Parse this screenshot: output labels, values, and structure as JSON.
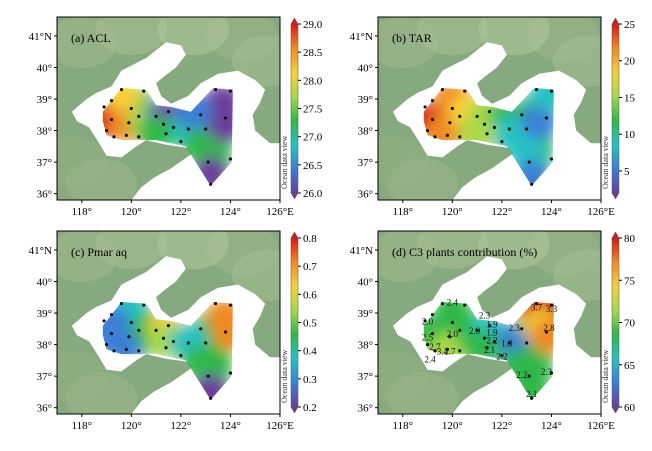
{
  "panels": [
    {
      "id": "a",
      "title": "(a) ACL",
      "colorbar": {
        "ticks": [
          "29.0",
          "28.5",
          "28.0",
          "27.5",
          "27.0",
          "26.5",
          "26.0"
        ],
        "range": [
          26.0,
          29.0
        ],
        "colors": [
          "#6a3d9a",
          "#3a7fd6",
          "#27c2c2",
          "#2eb84a",
          "#a7d84a",
          "#f6d13a",
          "#f08a24",
          "#d7191c"
        ]
      },
      "watermark": "Ocean data view",
      "labels": []
    },
    {
      "id": "b",
      "title": "(b) TAR",
      "colorbar": {
        "ticks": [
          "25",
          "20",
          "15",
          "10",
          "5"
        ],
        "range": [
          2,
          25
        ],
        "colors": [
          "#6a3d9a",
          "#3a7fd6",
          "#27c2c2",
          "#2eb84a",
          "#a7d84a",
          "#f6d13a",
          "#f08a24",
          "#d7191c"
        ]
      },
      "watermark": "Ocean data view",
      "labels": []
    },
    {
      "id": "c",
      "title": "(c) Pmar aq",
      "colorbar": {
        "ticks": [
          "0.8",
          "0.7",
          "0.6",
          "0.5",
          "0.4",
          "0.3",
          "0.2"
        ],
        "range": [
          0.2,
          0.8
        ],
        "colors": [
          "#6a3d9a",
          "#3a7fd6",
          "#27c2c2",
          "#2eb84a",
          "#a7d84a",
          "#f6d13a",
          "#f08a24",
          "#d7191c"
        ]
      },
      "watermark": "Ocean data view",
      "labels": []
    },
    {
      "id": "d",
      "title": "(d) C3 plants contribution (%)",
      "colorbar": {
        "ticks": [
          "80",
          "75",
          "70",
          "65",
          "60"
        ],
        "range": [
          60,
          80
        ],
        "colors": [
          "#6a3d9a",
          "#3a7fd6",
          "#27c2c2",
          "#2eb84a",
          "#a7d84a",
          "#f6d13a",
          "#f08a24",
          "#d7191c"
        ]
      },
      "watermark": "Ocean data view",
      "labels": [
        {
          "text": "2.4",
          "lon": 120.0,
          "lat": 39.3
        },
        {
          "text": "2.0",
          "lon": 119.0,
          "lat": 38.7
        },
        {
          "text": "2.3",
          "lon": 121.3,
          "lat": 38.9
        },
        {
          "text": "2.5",
          "lon": 119.0,
          "lat": 38.2
        },
        {
          "text": "2.0",
          "lon": 120.0,
          "lat": 38.3
        },
        {
          "text": "2.9",
          "lon": 120.9,
          "lat": 38.4
        },
        {
          "text": "1.9",
          "lon": 121.6,
          "lat": 38.6
        },
        {
          "text": "1.9",
          "lon": 121.6,
          "lat": 38.35
        },
        {
          "text": "2.7",
          "lon": 119.3,
          "lat": 37.9
        },
        {
          "text": "3.4",
          "lon": 119.6,
          "lat": 37.75
        },
        {
          "text": "2.7",
          "lon": 119.9,
          "lat": 37.75
        },
        {
          "text": "2.2",
          "lon": 121.6,
          "lat": 38.1
        },
        {
          "text": "1.8",
          "lon": 122.2,
          "lat": 38.0
        },
        {
          "text": "2.1",
          "lon": 121.5,
          "lat": 37.8
        },
        {
          "text": "2.2",
          "lon": 122.0,
          "lat": 37.6
        },
        {
          "text": "2.4",
          "lon": 119.1,
          "lat": 37.5
        },
        {
          "text": "2.3",
          "lon": 122.5,
          "lat": 38.5
        },
        {
          "text": "3.7",
          "lon": 123.4,
          "lat": 39.15
        },
        {
          "text": "3.3",
          "lon": 124.0,
          "lat": 39.1
        },
        {
          "text": "2.8",
          "lon": 123.9,
          "lat": 38.5
        },
        {
          "text": "2.2",
          "lon": 122.8,
          "lat": 37.0
        },
        {
          "text": "2.3",
          "lon": 123.8,
          "lat": 37.1
        },
        {
          "text": "2.1",
          "lon": 123.2,
          "lat": 36.4
        }
      ]
    }
  ],
  "map": {
    "lon_ticks": [
      "118°",
      "120°",
      "122°",
      "124°",
      "126°E"
    ],
    "lat_ticks": [
      "41°N",
      "40°",
      "39°",
      "38°",
      "37°",
      "36°"
    ],
    "lon_range": [
      117,
      126
    ],
    "lat_range": [
      35.8,
      41.6
    ]
  },
  "stations": [
    [
      119.6,
      39.3
    ],
    [
      120.5,
      39.25
    ],
    [
      118.9,
      38.75
    ],
    [
      119.2,
      38.95
    ],
    [
      120.0,
      38.7
    ],
    [
      120.3,
      38.45
    ],
    [
      119.9,
      38.25
    ],
    [
      119.2,
      38.35
    ],
    [
      119.0,
      38.0
    ],
    [
      119.3,
      37.8
    ],
    [
      119.8,
      37.85
    ],
    [
      120.3,
      37.8
    ],
    [
      121.0,
      38.45
    ],
    [
      121.5,
      38.6
    ],
    [
      121.3,
      38.2
    ],
    [
      121.7,
      38.1
    ],
    [
      121.4,
      37.9
    ],
    [
      122.0,
      37.65
    ],
    [
      122.3,
      38.05
    ],
    [
      122.8,
      38.5
    ],
    [
      123.4,
      39.3
    ],
    [
      124.0,
      39.25
    ],
    [
      123.8,
      38.4
    ],
    [
      124.0,
      37.1
    ],
    [
      123.1,
      37.0
    ],
    [
      123.2,
      36.3
    ],
    [
      123.0,
      38.05
    ]
  ]
}
